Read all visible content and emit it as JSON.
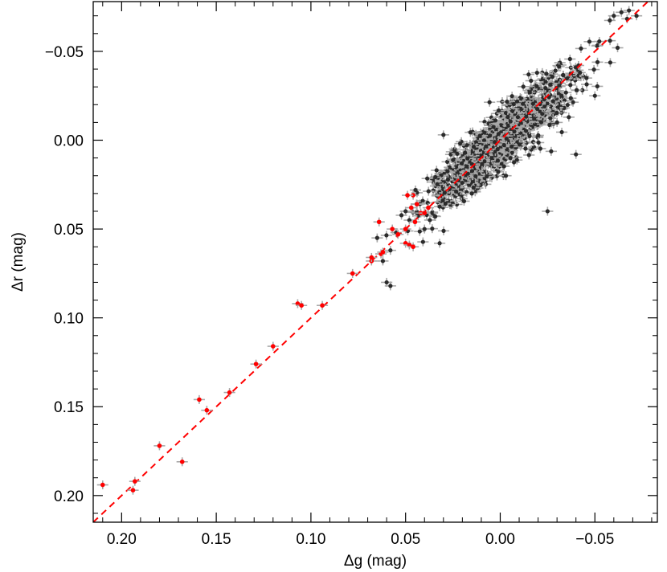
{
  "chart_data": {
    "type": "scatter",
    "xlabel": "Δg (mag)",
    "ylabel": "Δr (mag)",
    "xlim": [
      0.215,
      -0.083
    ],
    "ylim": [
      0.215,
      -0.078
    ],
    "x_inverted": true,
    "y_inverted": true,
    "xticks": [
      {
        "value": 0.2,
        "label": "0.20"
      },
      {
        "value": 0.15,
        "label": "0.15"
      },
      {
        "value": 0.1,
        "label": "0.10"
      },
      {
        "value": 0.05,
        "label": "0.05"
      },
      {
        "value": 0.0,
        "label": "0.00"
      },
      {
        "value": -0.05,
        "label": "−0.05"
      }
    ],
    "yticks": [
      {
        "value": -0.05,
        "label": "−0.05"
      },
      {
        "value": 0.0,
        "label": "0.00"
      },
      {
        "value": 0.05,
        "label": "0.05"
      },
      {
        "value": 0.1,
        "label": "0.10"
      },
      {
        "value": 0.15,
        "label": "0.15"
      },
      {
        "value": 0.2,
        "label": "0.20"
      }
    ],
    "minor_tick_step": 0.01,
    "grid": false,
    "colors": {
      "main_points": "#2b2b2b",
      "error_bars": "#a8a8a8",
      "outlier_points": "#ff0000",
      "fit_line": "#ff0000"
    },
    "fit_line": {
      "style": "dashed",
      "slope": 1.0,
      "intercept": 0.0
    },
    "error_bars": {
      "x": 0.003,
      "y": 0.0025
    },
    "series": [
      {
        "role": "main_cluster",
        "count": 1100,
        "center": [
          0.0,
          0.0
        ],
        "along_line_spread": 0.018,
        "across_line_spread": 0.0075,
        "x_range": [
          0.065,
          -0.073
        ],
        "points": [
          [
            -0.068,
            -0.073
          ],
          [
            -0.072,
            -0.07
          ],
          [
            -0.064,
            -0.072
          ],
          [
            -0.06,
            -0.07
          ],
          [
            -0.058,
            -0.056
          ],
          [
            -0.062,
            -0.052
          ],
          [
            -0.05,
            -0.025
          ],
          [
            -0.015,
            -0.037
          ],
          [
            0.03,
            -0.003
          ],
          [
            0.05,
            0.04
          ],
          [
            0.048,
            0.045
          ],
          [
            0.055,
            0.052
          ],
          [
            0.058,
            0.062
          ],
          [
            0.062,
            0.068
          ],
          [
            0.065,
            0.055
          ],
          [
            0.06,
            0.08
          ],
          [
            0.058,
            0.082
          ],
          [
            0.032,
            0.058
          ],
          [
            -0.003,
            0.02
          ],
          [
            -0.025,
            0.04
          ],
          [
            -0.04,
            0.008
          ],
          [
            -0.03,
            -0.01
          ],
          [
            0.015,
            0.03
          ],
          [
            0.04,
            0.05
          ]
        ]
      },
      {
        "role": "outliers",
        "points": [
          [
            0.21,
            0.194
          ],
          [
            0.193,
            0.192
          ],
          [
            0.194,
            0.197
          ],
          [
            0.18,
            0.172
          ],
          [
            0.168,
            0.181
          ],
          [
            0.159,
            0.146
          ],
          [
            0.155,
            0.152
          ],
          [
            0.143,
            0.142
          ],
          [
            0.129,
            0.126
          ],
          [
            0.12,
            0.116
          ],
          [
            0.107,
            0.092
          ],
          [
            0.105,
            0.093
          ],
          [
            0.094,
            0.093
          ],
          [
            0.078,
            0.075
          ],
          [
            0.068,
            0.068
          ],
          [
            0.068,
            0.066
          ],
          [
            0.063,
            0.064
          ],
          [
            0.062,
            0.063
          ],
          [
            0.064,
            0.046
          ],
          [
            0.057,
            0.05
          ],
          [
            0.054,
            0.053
          ],
          [
            0.05,
            0.058
          ],
          [
            0.048,
            0.059
          ],
          [
            0.05,
            0.05
          ],
          [
            0.046,
            0.031
          ],
          [
            0.049,
            0.031
          ],
          [
            0.047,
            0.038
          ],
          [
            0.044,
            0.036
          ],
          [
            0.042,
            0.041
          ],
          [
            0.045,
            0.046
          ],
          [
            0.04,
            0.041
          ],
          [
            0.038,
            0.038
          ],
          [
            0.046,
            0.06
          ]
        ]
      }
    ]
  }
}
